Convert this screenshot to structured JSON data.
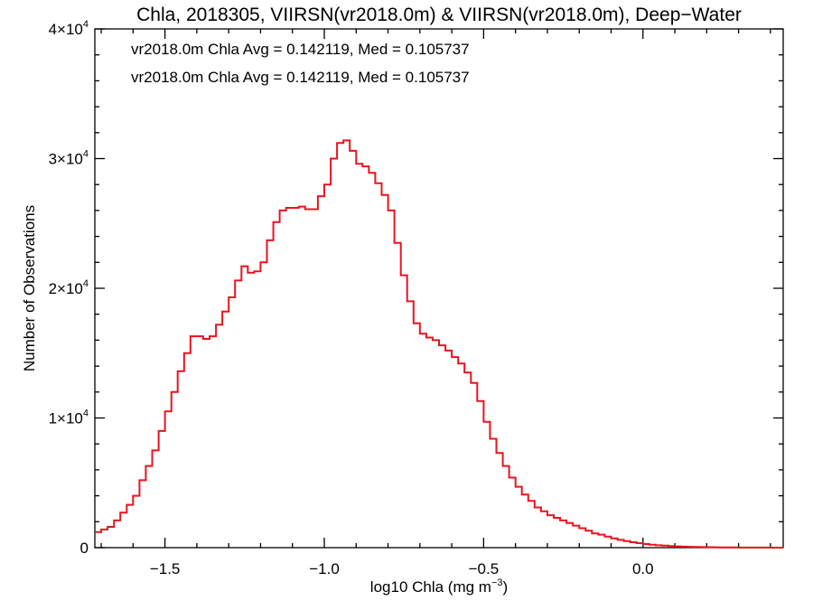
{
  "chart_data": {
    "type": "line",
    "title": "Chla, 2018305, VIIRSN(vr2018.0m) & VIIRSN(vr2018.0m), Deep−Water",
    "xlabel": "log10 Chla (mg m",
    "xlabel_sup": "−3",
    "xlabel_close": ")",
    "ylabel": "Number of Observations",
    "xlim": [
      -1.72,
      0.44
    ],
    "ylim": [
      0,
      40000
    ],
    "x_ticks": [
      {
        "value": -1.5,
        "label": "−1.5"
      },
      {
        "value": -1.0,
        "label": "−1.0"
      },
      {
        "value": -0.5,
        "label": "−0.5"
      },
      {
        "value": 0.0,
        "label": "0.0"
      }
    ],
    "y_ticks": [
      {
        "value": 0,
        "label": "0",
        "sup": ""
      },
      {
        "value": 10000,
        "label": "1×10",
        "sup": "4"
      },
      {
        "value": 20000,
        "label": "2×10",
        "sup": "4"
      },
      {
        "value": 30000,
        "label": "3×10",
        "sup": "4"
      },
      {
        "value": 40000,
        "label": "4×10",
        "sup": "4"
      }
    ],
    "annotations": [
      {
        "text": "vr2018.0m Chla Avg = 0.142119, Med = 0.105737",
        "color": "#000000"
      },
      {
        "text": "vr2018.0m Chla Avg = 0.142119, Med = 0.105737",
        "color": "#e8141e"
      }
    ],
    "series": [
      {
        "color": "#e8141e",
        "points": [
          [
            -1.72,
            1200
          ],
          [
            -1.7,
            1400
          ],
          [
            -1.68,
            1600
          ],
          [
            -1.66,
            2100
          ],
          [
            -1.64,
            2700
          ],
          [
            -1.62,
            3300
          ],
          [
            -1.6,
            4000
          ],
          [
            -1.58,
            5200
          ],
          [
            -1.56,
            6300
          ],
          [
            -1.54,
            7500
          ],
          [
            -1.52,
            9000
          ],
          [
            -1.5,
            10500
          ],
          [
            -1.48,
            12000
          ],
          [
            -1.46,
            13600
          ],
          [
            -1.44,
            15000
          ],
          [
            -1.42,
            16300
          ],
          [
            -1.4,
            16300
          ],
          [
            -1.38,
            16100
          ],
          [
            -1.36,
            16300
          ],
          [
            -1.34,
            17200
          ],
          [
            -1.32,
            18200
          ],
          [
            -1.3,
            19300
          ],
          [
            -1.28,
            20600
          ],
          [
            -1.26,
            21700
          ],
          [
            -1.24,
            21200
          ],
          [
            -1.22,
            21300
          ],
          [
            -1.2,
            22000
          ],
          [
            -1.18,
            23700
          ],
          [
            -1.16,
            25100
          ],
          [
            -1.14,
            26000
          ],
          [
            -1.12,
            26200
          ],
          [
            -1.1,
            26200
          ],
          [
            -1.08,
            26300
          ],
          [
            -1.06,
            26100
          ],
          [
            -1.04,
            26100
          ],
          [
            -1.02,
            27100
          ],
          [
            -1.0,
            28000
          ],
          [
            -0.98,
            30000
          ],
          [
            -0.96,
            31200
          ],
          [
            -0.94,
            31400
          ],
          [
            -0.92,
            30600
          ],
          [
            -0.9,
            29600
          ],
          [
            -0.88,
            29400
          ],
          [
            -0.86,
            28900
          ],
          [
            -0.84,
            28100
          ],
          [
            -0.82,
            27200
          ],
          [
            -0.8,
            26000
          ],
          [
            -0.78,
            23500
          ],
          [
            -0.76,
            21000
          ],
          [
            -0.74,
            19000
          ],
          [
            -0.72,
            17300
          ],
          [
            -0.7,
            16500
          ],
          [
            -0.68,
            16200
          ],
          [
            -0.66,
            16000
          ],
          [
            -0.64,
            15600
          ],
          [
            -0.62,
            15200
          ],
          [
            -0.6,
            14700
          ],
          [
            -0.58,
            14200
          ],
          [
            -0.56,
            13500
          ],
          [
            -0.54,
            12700
          ],
          [
            -0.52,
            11300
          ],
          [
            -0.5,
            9700
          ],
          [
            -0.48,
            8400
          ],
          [
            -0.46,
            7300
          ],
          [
            -0.44,
            6300
          ],
          [
            -0.42,
            5400
          ],
          [
            -0.4,
            4700
          ],
          [
            -0.38,
            4100
          ],
          [
            -0.36,
            3600
          ],
          [
            -0.34,
            3100
          ],
          [
            -0.32,
            2800
          ],
          [
            -0.3,
            2500
          ],
          [
            -0.28,
            2300
          ],
          [
            -0.26,
            2100
          ],
          [
            -0.24,
            1900
          ],
          [
            -0.22,
            1700
          ],
          [
            -0.2,
            1500
          ],
          [
            -0.18,
            1300
          ],
          [
            -0.16,
            1100
          ],
          [
            -0.14,
            1000
          ],
          [
            -0.12,
            850
          ],
          [
            -0.1,
            720
          ],
          [
            -0.08,
            600
          ],
          [
            -0.06,
            500
          ],
          [
            -0.04,
            420
          ],
          [
            -0.02,
            350
          ],
          [
            0.0,
            280
          ],
          [
            0.02,
            220
          ],
          [
            0.04,
            180
          ],
          [
            0.06,
            150
          ],
          [
            0.08,
            120
          ],
          [
            0.1,
            100
          ],
          [
            0.12,
            80
          ],
          [
            0.14,
            65
          ],
          [
            0.16,
            50
          ],
          [
            0.18,
            40
          ],
          [
            0.2,
            32
          ],
          [
            0.22,
            25
          ],
          [
            0.24,
            20
          ],
          [
            0.26,
            15
          ],
          [
            0.28,
            12
          ],
          [
            0.3,
            10
          ],
          [
            0.32,
            8
          ],
          [
            0.34,
            6
          ],
          [
            0.36,
            5
          ],
          [
            0.38,
            4
          ],
          [
            0.4,
            3
          ],
          [
            0.42,
            2
          ],
          [
            0.44,
            2
          ]
        ]
      }
    ]
  }
}
